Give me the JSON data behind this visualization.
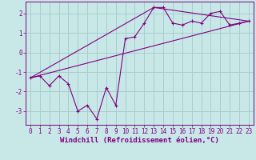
{
  "background_color": "#c8e8e8",
  "grid_color": "#aacccc",
  "line_color": "#800080",
  "xlabel": "Windchill (Refroidissement éolien,°C)",
  "xlim": [
    -0.5,
    23.5
  ],
  "ylim": [
    -3.7,
    2.6
  ],
  "yticks": [
    -3,
    -2,
    -1,
    0,
    1,
    2
  ],
  "xticks": [
    0,
    1,
    2,
    3,
    4,
    5,
    6,
    7,
    8,
    9,
    10,
    11,
    12,
    13,
    14,
    15,
    16,
    17,
    18,
    19,
    20,
    21,
    22,
    23
  ],
  "series1_x": [
    0,
    1,
    2,
    3,
    4,
    5,
    6,
    7,
    8,
    9,
    10,
    11,
    12,
    13,
    14,
    15,
    16,
    17,
    18,
    19,
    20,
    21,
    22,
    23
  ],
  "series1_y": [
    -1.3,
    -1.2,
    -1.7,
    -1.2,
    -1.6,
    -3.0,
    -2.7,
    -3.4,
    -1.8,
    -2.7,
    0.7,
    0.8,
    1.5,
    2.3,
    2.3,
    1.5,
    1.4,
    1.6,
    1.5,
    2.0,
    2.1,
    1.4,
    1.5,
    1.6
  ],
  "series2_x": [
    0,
    13,
    23
  ],
  "series2_y": [
    -1.3,
    2.3,
    1.6
  ],
  "series3_x": [
    0,
    23
  ],
  "series3_y": [
    -1.3,
    1.6
  ],
  "font_color": "#800080",
  "tick_label_fontsize": 5.5,
  "xlabel_fontsize": 6.5
}
